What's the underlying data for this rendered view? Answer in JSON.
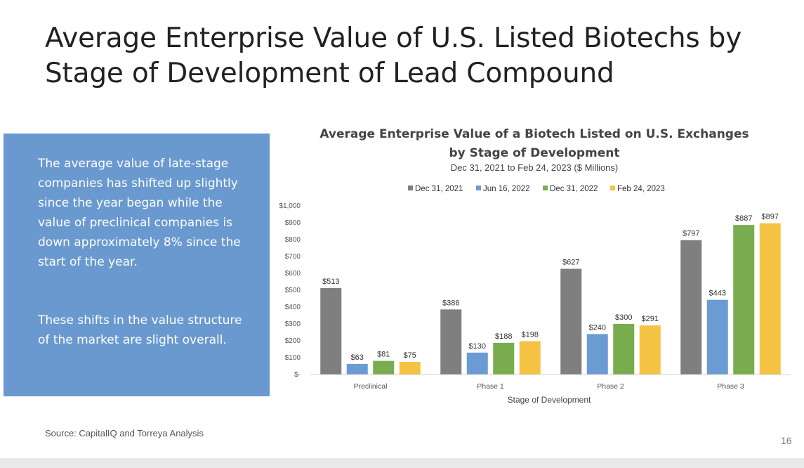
{
  "slide": {
    "title": "Average Enterprise Value of U.S. Listed Biotechs by Stage of Development of Lead Compound",
    "callout_p1": "The average value of late-stage companies has shifted up slightly since the year began while the value of preclinical companies is down approximately 8% since the start of the year.",
    "callout_p2": "These shifts in the value structure of the market are slight overall.",
    "source": "Source: CapitalIQ and Torreya Analysis",
    "page_number": "16"
  },
  "colors": {
    "callout_bg": "#6a99cf",
    "series": [
      "#7f7f7f",
      "#6a9bd3",
      "#79ac4e",
      "#f5c344"
    ]
  },
  "chart_data": {
    "type": "bar",
    "title_line1": "Average Enterprise Value of a Biotech Listed on U.S. Exchanges",
    "title_line2": "by Stage of Development",
    "subtitle": "Dec 31, 2021 to Feb 24, 2023 ($ Millions)",
    "xlabel": "Stage of Development",
    "ylabel": "",
    "categories": [
      "Preclinical",
      "Phase 1",
      "Phase 2",
      "Phase 3"
    ],
    "series": [
      {
        "name": "Dec 31, 2021",
        "values": [
          513,
          386,
          627,
          797
        ],
        "labels": [
          "$513",
          "$386",
          "$627",
          "$797"
        ]
      },
      {
        "name": "Jun 16, 2022",
        "values": [
          63,
          130,
          240,
          443
        ],
        "labels": [
          "$63",
          "$130",
          "$240",
          "$443"
        ]
      },
      {
        "name": "Dec 31, 2022",
        "values": [
          81,
          188,
          300,
          887
        ],
        "labels": [
          "$81",
          "$188",
          "$300",
          "$887"
        ]
      },
      {
        "name": "Feb 24, 2023",
        "values": [
          75,
          198,
          291,
          897
        ],
        "labels": [
          "$75",
          "$198",
          "$291",
          "$897"
        ]
      }
    ],
    "ylim": [
      0,
      1000
    ],
    "yticks": [
      0,
      100,
      200,
      300,
      400,
      500,
      600,
      700,
      800,
      900,
      1000
    ],
    "ytick_labels": [
      "$-",
      "$100",
      "$200",
      "$300",
      "$400",
      "$500",
      "$600",
      "$700",
      "$800",
      "$900",
      "$1,000"
    ],
    "grid": false,
    "legend_position": "top"
  }
}
